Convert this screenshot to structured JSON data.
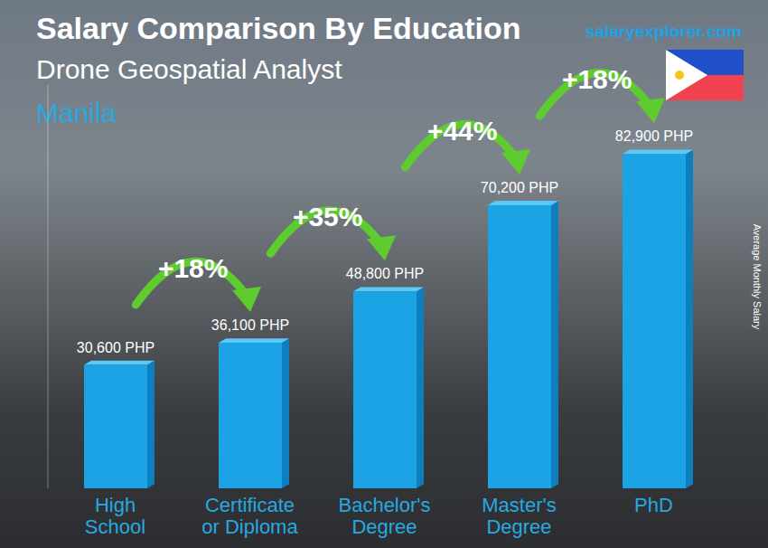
{
  "chart_data": {
    "type": "bar",
    "title": "Salary Comparison By Education",
    "subtitle": "Drone Geospatial Analyst",
    "location": "Manila",
    "source": "salaryexplorer.com",
    "y_label": "Average Monthly Salary",
    "categories": [
      "High School",
      "Certificate or Diploma",
      "Bachelor's Degree",
      "Master's Degree",
      "PhD"
    ],
    "values": [
      30600,
      36100,
      48800,
      70200,
      82900
    ],
    "value_labels": [
      "30,600 PHP",
      "36,100 PHP",
      "48,800 PHP",
      "70,200 PHP",
      "82,900 PHP"
    ],
    "annotations": [
      "+18%",
      "+35%",
      "+44%",
      "+18%"
    ],
    "color": "#1ba3e6",
    "ylim": [
      0,
      100000
    ],
    "grid": false,
    "tick_labels": "x",
    "data_labels": true
  }
}
